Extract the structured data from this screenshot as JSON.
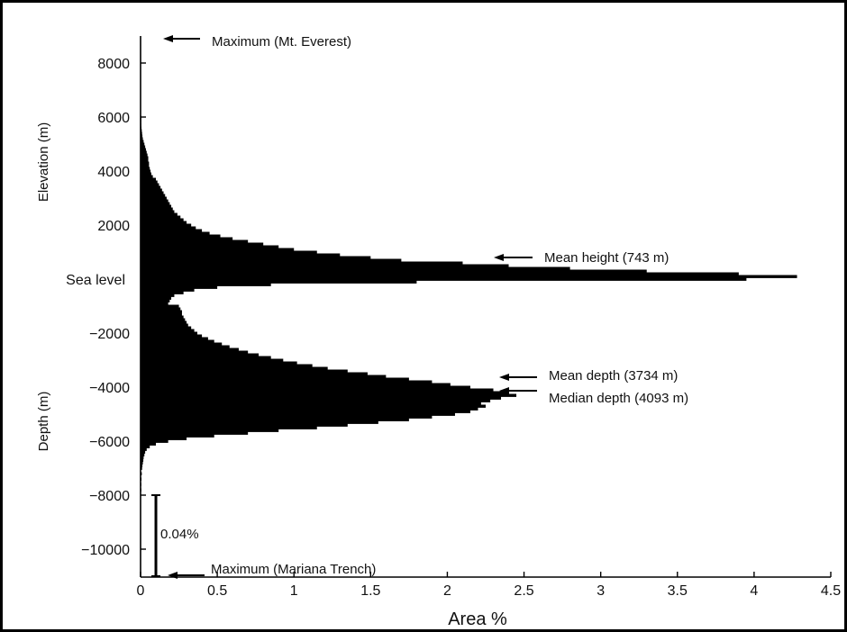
{
  "chart_data": {
    "type": "bar",
    "orientation": "horizontal",
    "xlabel": "Area %",
    "xlim": [
      0,
      4.5
    ],
    "ylim": [
      -11000,
      9000
    ],
    "x_ticks": [
      0,
      0.5,
      1,
      1.5,
      2,
      2.5,
      3,
      3.5,
      4,
      4.5
    ],
    "x_tick_labels": [
      "0",
      "0.5",
      "1",
      "1.5",
      "2",
      "2.5",
      "3",
      "3.5",
      "4",
      "4.5"
    ],
    "y_ticks": [
      8000,
      6000,
      4000,
      2000,
      0,
      -2000,
      -4000,
      -6000,
      -8000,
      -10000
    ],
    "y_tick_labels": [
      "8000",
      "6000",
      "4000",
      "2000",
      "Sea level",
      "−2000",
      "−4000",
      "−6000",
      "−8000",
      "−10000"
    ],
    "upper_axis_label": "Elevation  (m)",
    "lower_axis_label": "Depth (m)",
    "grid": false,
    "legend": "none",
    "bin_width_m": 100,
    "bins": [
      {
        "elev": 6000,
        "area": 0.002
      },
      {
        "elev": 5900,
        "area": 0.003
      },
      {
        "elev": 5800,
        "area": 0.004
      },
      {
        "elev": 5700,
        "area": 0.005
      },
      {
        "elev": 5600,
        "area": 0.006
      },
      {
        "elev": 5500,
        "area": 0.008
      },
      {
        "elev": 5400,
        "area": 0.01
      },
      {
        "elev": 5300,
        "area": 0.012
      },
      {
        "elev": 5200,
        "area": 0.015
      },
      {
        "elev": 5100,
        "area": 0.02
      },
      {
        "elev": 5000,
        "area": 0.025
      },
      {
        "elev": 4900,
        "area": 0.03
      },
      {
        "elev": 4800,
        "area": 0.035
      },
      {
        "elev": 4700,
        "area": 0.04
      },
      {
        "elev": 4600,
        "area": 0.045
      },
      {
        "elev": 4500,
        "area": 0.05
      },
      {
        "elev": 4400,
        "area": 0.05
      },
      {
        "elev": 4300,
        "area": 0.055
      },
      {
        "elev": 4200,
        "area": 0.055
      },
      {
        "elev": 4100,
        "area": 0.06
      },
      {
        "elev": 4000,
        "area": 0.065
      },
      {
        "elev": 3900,
        "area": 0.07
      },
      {
        "elev": 3800,
        "area": 0.08
      },
      {
        "elev": 3700,
        "area": 0.1
      },
      {
        "elev": 3600,
        "area": 0.11
      },
      {
        "elev": 3500,
        "area": 0.12
      },
      {
        "elev": 3400,
        "area": 0.13
      },
      {
        "elev": 3300,
        "area": 0.14
      },
      {
        "elev": 3200,
        "area": 0.15
      },
      {
        "elev": 3100,
        "area": 0.16
      },
      {
        "elev": 3000,
        "area": 0.17
      },
      {
        "elev": 2900,
        "area": 0.18
      },
      {
        "elev": 2800,
        "area": 0.19
      },
      {
        "elev": 2700,
        "area": 0.2
      },
      {
        "elev": 2600,
        "area": 0.21
      },
      {
        "elev": 2500,
        "area": 0.22
      },
      {
        "elev": 2400,
        "area": 0.24
      },
      {
        "elev": 2300,
        "area": 0.26
      },
      {
        "elev": 2200,
        "area": 0.28
      },
      {
        "elev": 2100,
        "area": 0.3
      },
      {
        "elev": 2000,
        "area": 0.33
      },
      {
        "elev": 1900,
        "area": 0.36
      },
      {
        "elev": 1800,
        "area": 0.4
      },
      {
        "elev": 1700,
        "area": 0.45
      },
      {
        "elev": 1600,
        "area": 0.52
      },
      {
        "elev": 1500,
        "area": 0.6
      },
      {
        "elev": 1400,
        "area": 0.7
      },
      {
        "elev": 1300,
        "area": 0.8
      },
      {
        "elev": 1200,
        "area": 0.9
      },
      {
        "elev": 1100,
        "area": 1.0
      },
      {
        "elev": 1000,
        "area": 1.15
      },
      {
        "elev": 900,
        "area": 1.3
      },
      {
        "elev": 800,
        "area": 1.5
      },
      {
        "elev": 700,
        "area": 1.7
      },
      {
        "elev": 600,
        "area": 2.1
      },
      {
        "elev": 500,
        "area": 2.4
      },
      {
        "elev": 400,
        "area": 2.8
      },
      {
        "elev": 300,
        "area": 3.3
      },
      {
        "elev": 200,
        "area": 3.9
      },
      {
        "elev": 100,
        "area": 4.28
      },
      {
        "elev": 0,
        "area": 3.95
      },
      {
        "elev": -100,
        "area": 1.8
      },
      {
        "elev": -200,
        "area": 0.85
      },
      {
        "elev": -300,
        "area": 0.5
      },
      {
        "elev": -400,
        "area": 0.35
      },
      {
        "elev": -500,
        "area": 0.28
      },
      {
        "elev": -600,
        "area": 0.22
      },
      {
        "elev": -700,
        "area": 0.2
      },
      {
        "elev": -800,
        "area": 0.19
      },
      {
        "elev": -900,
        "area": 0.18
      },
      {
        "elev": -1000,
        "area": 0.25
      },
      {
        "elev": -1100,
        "area": 0.26
      },
      {
        "elev": -1200,
        "area": 0.27
      },
      {
        "elev": -1300,
        "area": 0.27
      },
      {
        "elev": -1400,
        "area": 0.28
      },
      {
        "elev": -1500,
        "area": 0.29
      },
      {
        "elev": -1600,
        "area": 0.3
      },
      {
        "elev": -1700,
        "area": 0.31
      },
      {
        "elev": -1800,
        "area": 0.33
      },
      {
        "elev": -1900,
        "area": 0.35
      },
      {
        "elev": -2000,
        "area": 0.37
      },
      {
        "elev": -2100,
        "area": 0.4
      },
      {
        "elev": -2200,
        "area": 0.44
      },
      {
        "elev": -2300,
        "area": 0.48
      },
      {
        "elev": -2400,
        "area": 0.53
      },
      {
        "elev": -2500,
        "area": 0.58
      },
      {
        "elev": -2600,
        "area": 0.64
      },
      {
        "elev": -2700,
        "area": 0.7
      },
      {
        "elev": -2800,
        "area": 0.77
      },
      {
        "elev": -2900,
        "area": 0.85
      },
      {
        "elev": -3000,
        "area": 0.93
      },
      {
        "elev": -3100,
        "area": 1.02
      },
      {
        "elev": -3200,
        "area": 1.12
      },
      {
        "elev": -3300,
        "area": 1.22
      },
      {
        "elev": -3400,
        "area": 1.35
      },
      {
        "elev": -3500,
        "area": 1.48
      },
      {
        "elev": -3600,
        "area": 1.6
      },
      {
        "elev": -3700,
        "area": 1.75
      },
      {
        "elev": -3800,
        "area": 1.9
      },
      {
        "elev": -3900,
        "area": 2.02
      },
      {
        "elev": -4000,
        "area": 2.15
      },
      {
        "elev": -4100,
        "area": 2.3
      },
      {
        "elev": -4200,
        "area": 2.4
      },
      {
        "elev": -4300,
        "area": 2.45
      },
      {
        "elev": -4400,
        "area": 2.35
      },
      {
        "elev": -4500,
        "area": 2.28
      },
      {
        "elev": -4600,
        "area": 2.22
      },
      {
        "elev": -4700,
        "area": 2.25
      },
      {
        "elev": -4800,
        "area": 2.2
      },
      {
        "elev": -4900,
        "area": 2.15
      },
      {
        "elev": -5000,
        "area": 2.05
      },
      {
        "elev": -5100,
        "area": 1.9
      },
      {
        "elev": -5200,
        "area": 1.75
      },
      {
        "elev": -5300,
        "area": 1.55
      },
      {
        "elev": -5400,
        "area": 1.35
      },
      {
        "elev": -5500,
        "area": 1.15
      },
      {
        "elev": -5600,
        "area": 0.9
      },
      {
        "elev": -5700,
        "area": 0.7
      },
      {
        "elev": -5800,
        "area": 0.48
      },
      {
        "elev": -5900,
        "area": 0.3
      },
      {
        "elev": -6000,
        "area": 0.18
      },
      {
        "elev": -6100,
        "area": 0.1
      },
      {
        "elev": -6200,
        "area": 0.06
      },
      {
        "elev": -6300,
        "area": 0.04
      },
      {
        "elev": -6400,
        "area": 0.03
      },
      {
        "elev": -6500,
        "area": 0.025
      },
      {
        "elev": -6600,
        "area": 0.02
      },
      {
        "elev": -6700,
        "area": 0.018
      },
      {
        "elev": -6800,
        "area": 0.015
      },
      {
        "elev": -6900,
        "area": 0.012
      },
      {
        "elev": -7000,
        "area": 0.01
      },
      {
        "elev": -7200,
        "area": 0.008
      },
      {
        "elev": -7400,
        "area": 0.006
      },
      {
        "elev": -7600,
        "area": 0.004
      },
      {
        "elev": -7800,
        "area": 0.003
      }
    ],
    "annotations": [
      {
        "id": "max-everest",
        "text": "Maximum (Mt. Everest)",
        "elev": 8848
      },
      {
        "id": "mean-height",
        "text": "Mean height (743 m)",
        "elev": 743
      },
      {
        "id": "mean-depth",
        "text": "Mean depth (3734 m)",
        "elev": -3734
      },
      {
        "id": "median-depth",
        "text": "Median depth (4093 m)",
        "elev": -4093
      },
      {
        "id": "max-mariana",
        "text": "Maximum (Mariana Trench)",
        "elev": -10994
      }
    ],
    "scale_bar": {
      "label": "0.04%",
      "x": 0.1,
      "from": -8000,
      "to": -11000
    }
  }
}
